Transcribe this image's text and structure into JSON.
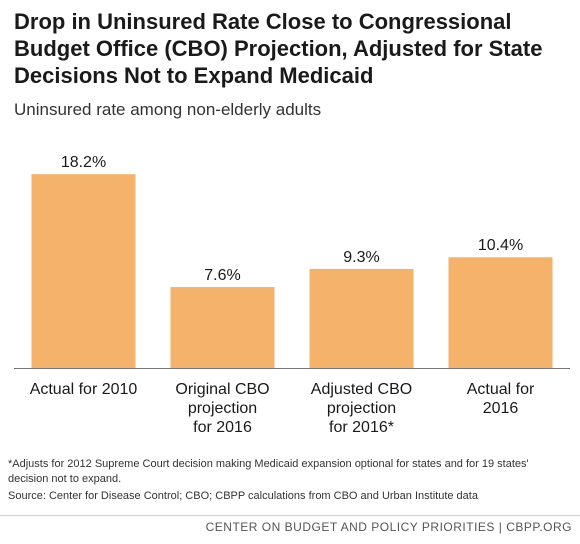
{
  "title": "Drop in Uninsured Rate Close to Congressional Budget Office (CBO) Projection, Adjusted for State Decisions Not to Expand Medicaid",
  "subtitle": "Uninsured rate among non-elderly adults",
  "footnote": "*Adjusts for 2012 Supreme Court decision making Medicaid expansion optional for states and for 19 states' decision not to expand.",
  "source": "Source: Center for Disease Control; CBO; CBPP calculations from CBO and Urban Institute data",
  "footer": "CENTER ON BUDGET AND POLICY PRIORITIES | CBPP.ORG",
  "colors": {
    "bar": "#F4B26A",
    "axis": "#777777"
  },
  "chart_data": {
    "type": "bar",
    "categories": [
      [
        "Actual for 2010"
      ],
      [
        "Original CBO",
        "projection",
        "for 2016"
      ],
      [
        "Adjusted CBO",
        "projection",
        "for 2016*"
      ],
      [
        "Actual for",
        "2016"
      ]
    ],
    "values": [
      18.2,
      7.6,
      9.3,
      10.4
    ],
    "data_labels": [
      "18.2%",
      "7.6%",
      "9.3%",
      "10.4%"
    ],
    "ylim": [
      0,
      20
    ],
    "grid": false,
    "legend": "none"
  }
}
